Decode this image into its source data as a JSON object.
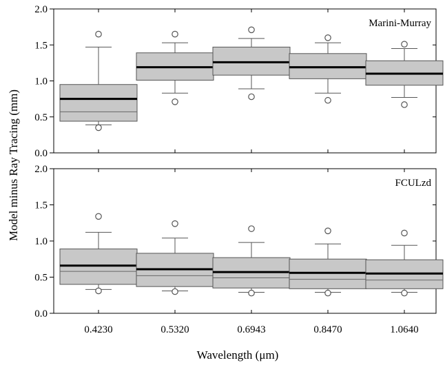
{
  "chart_data": [
    {
      "type": "boxplot",
      "panel_label": "Marini-Murray",
      "ylim": [
        0,
        2
      ],
      "yticks": [
        "0.0",
        "0.5",
        "1.0",
        "1.5",
        "2.0"
      ],
      "grid": false,
      "boxes": [
        {
          "q1": 0.44,
          "median": 0.57,
          "mean": 0.75,
          "q3": 0.95,
          "whisker_low": 0.39,
          "whisker_high": 1.47,
          "outliers": [
            0.35,
            1.65
          ]
        },
        {
          "q1": 1.01,
          "median": 1.19,
          "mean": 1.19,
          "q3": 1.39,
          "whisker_low": 0.83,
          "whisker_high": 1.53,
          "outliers": [
            0.71,
            1.65
          ]
        },
        {
          "q1": 1.08,
          "median": 1.25,
          "mean": 1.26,
          "q3": 1.47,
          "whisker_low": 0.89,
          "whisker_high": 1.59,
          "outliers": [
            0.78,
            1.71
          ]
        },
        {
          "q1": 1.03,
          "median": 1.18,
          "mean": 1.19,
          "q3": 1.38,
          "whisker_low": 0.83,
          "whisker_high": 1.53,
          "outliers": [
            0.73,
            1.6
          ]
        },
        {
          "q1": 0.94,
          "median": 1.1,
          "mean": 1.1,
          "q3": 1.28,
          "whisker_low": 0.77,
          "whisker_high": 1.45,
          "outliers": [
            0.67,
            1.51
          ]
        }
      ]
    },
    {
      "type": "boxplot",
      "panel_label": "FCULzd",
      "ylim": [
        0,
        2
      ],
      "yticks": [
        "0.0",
        "0.5",
        "1.0",
        "1.5",
        "2.0"
      ],
      "grid": false,
      "boxes": [
        {
          "q1": 0.4,
          "median": 0.58,
          "mean": 0.66,
          "q3": 0.89,
          "whisker_low": 0.33,
          "whisker_high": 1.12,
          "outliers": [
            0.31,
            1.34
          ]
        },
        {
          "q1": 0.37,
          "median": 0.52,
          "mean": 0.61,
          "q3": 0.83,
          "whisker_low": 0.31,
          "whisker_high": 1.04,
          "outliers": [
            0.3,
            1.24
          ]
        },
        {
          "q1": 0.35,
          "median": 0.49,
          "mean": 0.57,
          "q3": 0.77,
          "whisker_low": 0.29,
          "whisker_high": 0.98,
          "outliers": [
            0.28,
            1.17
          ]
        },
        {
          "q1": 0.34,
          "median": 0.47,
          "mean": 0.56,
          "q3": 0.75,
          "whisker_low": 0.29,
          "whisker_high": 0.96,
          "outliers": [
            0.28,
            1.14
          ]
        },
        {
          "q1": 0.34,
          "median": 0.46,
          "mean": 0.55,
          "q3": 0.74,
          "whisker_low": 0.29,
          "whisker_high": 0.94,
          "outliers": [
            0.28,
            1.11
          ]
        }
      ]
    }
  ],
  "categories": [
    "0.4230",
    "0.5320",
    "0.6943",
    "0.8470",
    "1.0640"
  ],
  "xlabel": "Wavelength (μm)",
  "ylabel": "Model minus Ray Tracing (mm)",
  "colors": {
    "box_fill": "#c8c8c8",
    "box_stroke": "#555555",
    "mean_line": "#000000",
    "median_line": "#666666",
    "axis": "#000000"
  }
}
